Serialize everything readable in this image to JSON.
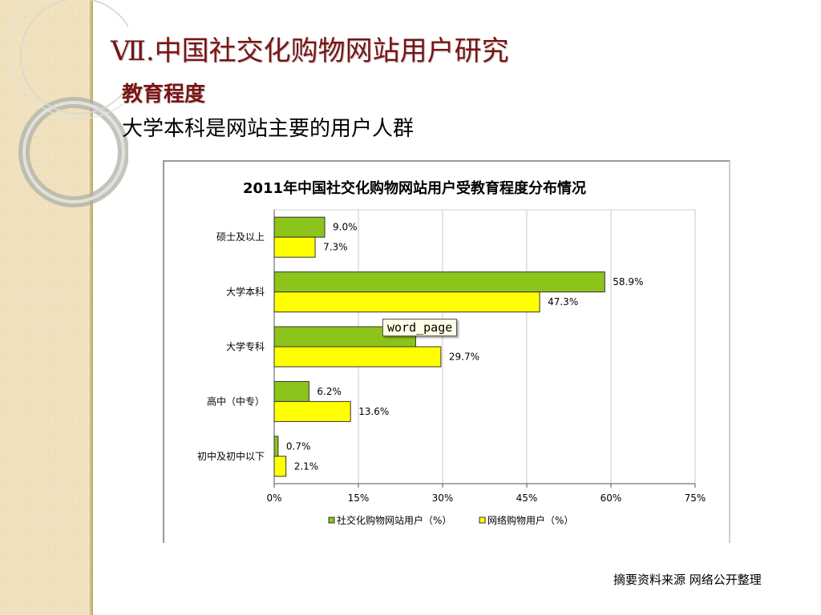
{
  "slide": {
    "title": "Ⅶ.中国社交化购物网站用户研究",
    "subtitle": "教育程度",
    "headline": "大学本科是网站主要的用户人群",
    "footnote": "摘要资料来源 网络公开整理"
  },
  "tooltip": {
    "text": "word_page"
  },
  "colors": {
    "series1": "#8cc41c",
    "series2": "#ffff00",
    "title": "#7a1414"
  },
  "chart_data": {
    "type": "bar",
    "orientation": "horizontal",
    "title": "2011年中国社交化购物网站用户受教育程度分布情况",
    "categories": [
      "硕士及以上",
      "大学本科",
      "大学专科",
      "高中（中专）",
      "初中及初中以下"
    ],
    "series": [
      {
        "name": "社交化购物网站用户（%）",
        "color": "#8cc41c",
        "values": [
          9.0,
          58.9,
          25.2,
          6.2,
          0.7
        ],
        "labels": [
          "9.0%",
          "58.9%",
          "",
          "6.2%",
          "0.7%"
        ]
      },
      {
        "name": "网络购物用户（%）",
        "color": "#ffff00",
        "values": [
          7.3,
          47.3,
          29.7,
          13.6,
          2.1
        ],
        "labels": [
          "7.3%",
          "47.3%",
          "29.7%",
          "13.6%",
          "2.1%"
        ]
      }
    ],
    "xlim": [
      0,
      75
    ],
    "xticks": [
      0,
      15,
      30,
      45,
      60,
      75
    ],
    "xtick_labels": [
      "0%",
      "15%",
      "30%",
      "45%",
      "60%",
      "75%"
    ],
    "grid": true,
    "legend": "bottom"
  }
}
